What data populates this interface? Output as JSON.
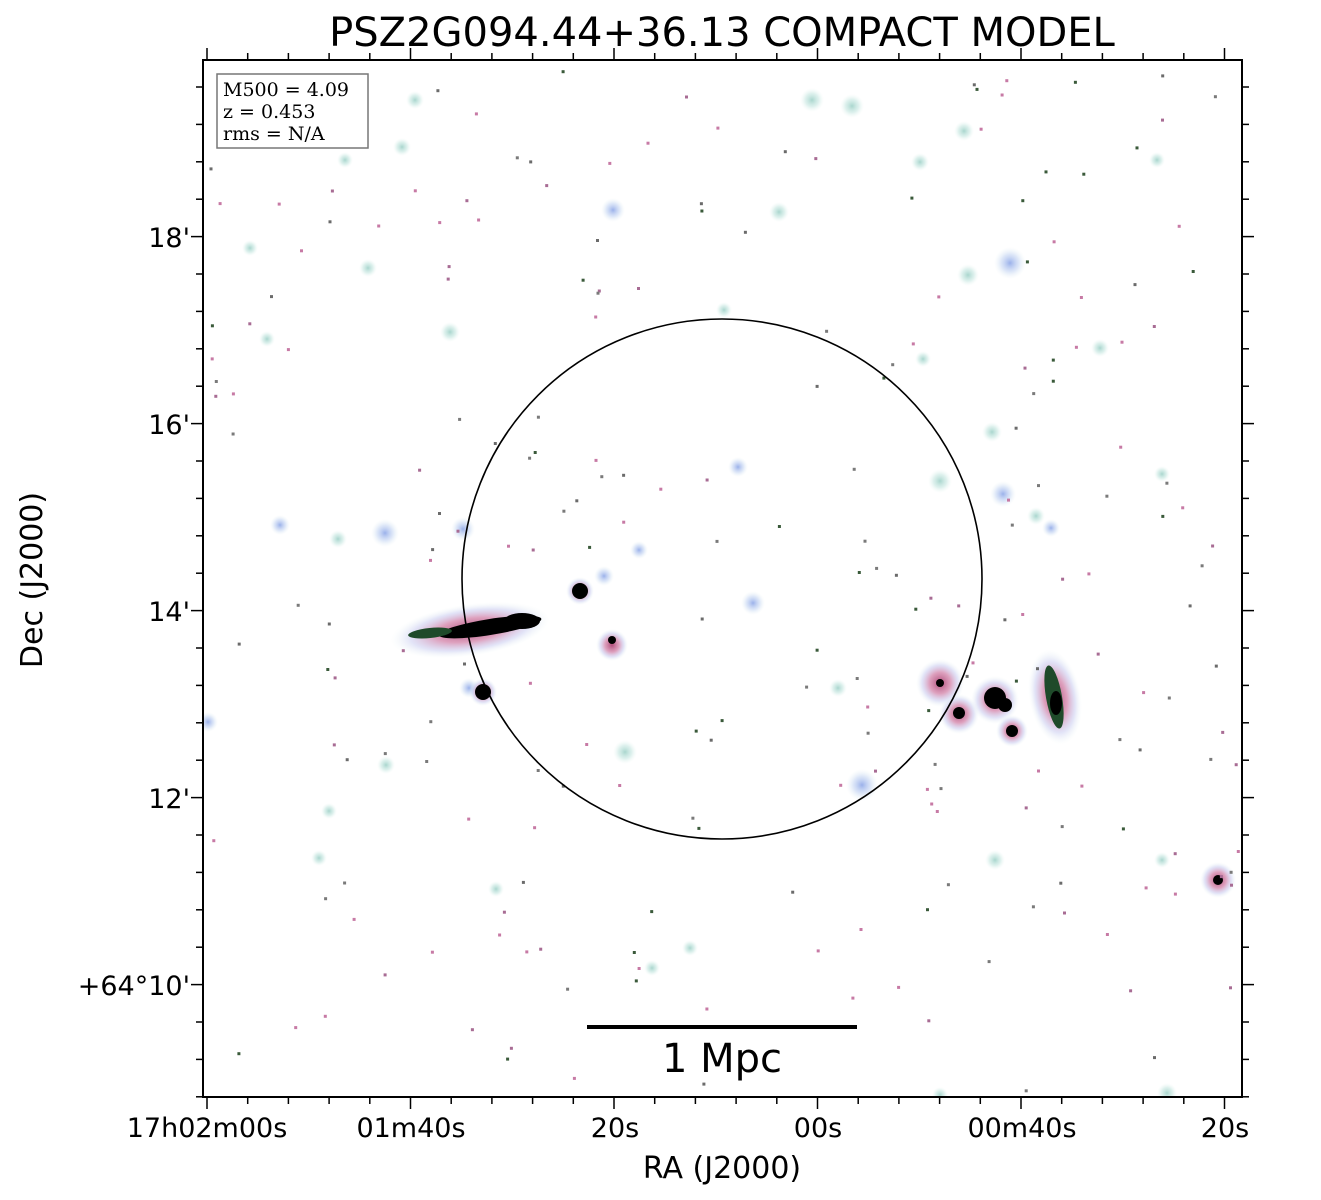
{
  "figure": {
    "title": "PSZ2G094.44+36.13 COMPACT MODEL",
    "xlabel": "RA (J2000)",
    "ylabel": "Dec (J2000)",
    "x_ticks": [
      "17h02m00s",
      "01m40s",
      "20s",
      "00s",
      "00m40s",
      "20s"
    ],
    "y_ticks": [
      "18'",
      "16'",
      "14'",
      "12'",
      "+64°10'"
    ],
    "scale_bar_label": "1 Mpc",
    "info_box": {
      "mass": "M500 = 4.09",
      "redshift": "z = 0.453",
      "rms": "rms = N/A"
    }
  },
  "colors": {
    "halo": "#bfe3dc",
    "halo_blue": "#b8c8ef",
    "halo_pink": "#d99ab8",
    "core_green": "#2a5a2a",
    "core": "#000000",
    "pixel_pink": "#c77aa5",
    "pixel_dark": "#3a3a3a"
  }
}
